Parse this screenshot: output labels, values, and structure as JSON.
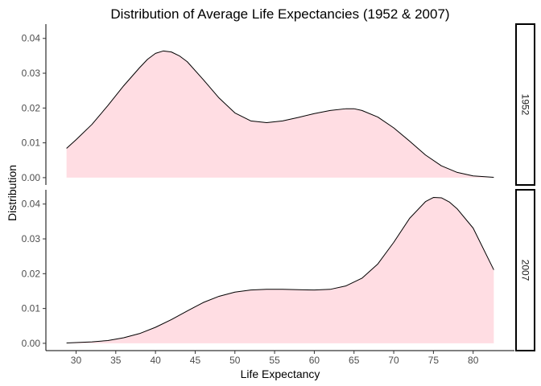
{
  "chart_data": {
    "type": "area",
    "title": "Distribution of Average Life Expectancies (1952 & 2007)",
    "xlabel": "Life Expectancy",
    "ylabel": "Distribution",
    "xlim": [
      26.2,
      85.2
    ],
    "ylim": [
      -0.0021,
      0.0441
    ],
    "x_ticks": [
      30,
      35,
      40,
      45,
      50,
      55,
      60,
      65,
      70,
      75,
      80
    ],
    "y_ticks": [
      0.0,
      0.01,
      0.02,
      0.03,
      0.04
    ],
    "y_tick_labels": [
      "0.00",
      "0.01",
      "0.02",
      "0.03",
      "0.04"
    ],
    "fill_color": "#ffdde3",
    "line_color": "#000000",
    "grid": false,
    "facets": "right",
    "panels": [
      {
        "label": "1952",
        "x": [
          28.8,
          30,
          32,
          34,
          36,
          38,
          39,
          40,
          41,
          42,
          43,
          44,
          46,
          48,
          50,
          52,
          54,
          56,
          58,
          60,
          62,
          64,
          65,
          66,
          68,
          70,
          72,
          74,
          76,
          78,
          80,
          82.6
        ],
        "y": [
          0.0084,
          0.0109,
          0.0153,
          0.0207,
          0.0264,
          0.0316,
          0.034,
          0.0357,
          0.0364,
          0.0361,
          0.035,
          0.0333,
          0.0282,
          0.0229,
          0.0186,
          0.0163,
          0.0158,
          0.0163,
          0.0173,
          0.0184,
          0.0193,
          0.0198,
          0.0198,
          0.0193,
          0.0174,
          0.0143,
          0.0105,
          0.0065,
          0.0034,
          0.0015,
          0.0005,
          0.0001
        ]
      },
      {
        "label": "2007",
        "x": [
          28.8,
          32,
          34,
          36,
          38,
          40,
          42,
          44,
          46,
          48,
          50,
          52,
          54,
          56,
          58,
          60,
          62,
          64,
          66,
          68,
          70,
          72,
          74,
          75,
          76,
          77,
          78,
          80,
          82.6
        ],
        "y": [
          0.0001,
          0.0004,
          0.0008,
          0.0016,
          0.0028,
          0.0046,
          0.0068,
          0.0093,
          0.0117,
          0.0135,
          0.0147,
          0.0153,
          0.0155,
          0.0155,
          0.0154,
          0.0153,
          0.0155,
          0.0165,
          0.0187,
          0.0228,
          0.029,
          0.0359,
          0.0407,
          0.0419,
          0.0418,
          0.0406,
          0.0386,
          0.0331,
          0.0211
        ]
      }
    ]
  }
}
